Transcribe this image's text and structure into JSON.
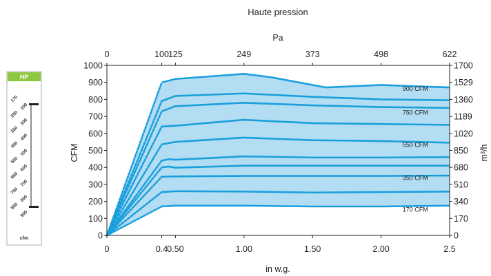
{
  "chart_data": {
    "type": "line",
    "title": "Haute pression",
    "xlabel": "in w.g.",
    "x2label": "Pa",
    "ylabel": "CFM",
    "y2label": "m³/h",
    "xlim": [
      0,
      2.5
    ],
    "ylim": [
      0,
      1000
    ],
    "x_ticks": [
      0,
      0.4,
      0.5,
      1.0,
      1.5,
      2.0,
      2.5
    ],
    "x_tick_labels": [
      "0",
      "0.4",
      "0.50",
      "1.00",
      "1.50",
      "2.00",
      "2.5"
    ],
    "x2_ticks": [
      0,
      0.4,
      0.5,
      1.0,
      1.5,
      2.0,
      2.5
    ],
    "x2_tick_labels": [
      "0",
      "100",
      "125",
      "249",
      "373",
      "498",
      "622"
    ],
    "y_ticks": [
      0,
      100,
      200,
      300,
      400,
      500,
      600,
      700,
      800,
      900,
      1000
    ],
    "y_tick_labels": [
      "0",
      "100",
      "200",
      "300",
      "400",
      "500",
      "600",
      "700",
      "800",
      "900",
      "1000"
    ],
    "y2_ticks": [
      0,
      100,
      200,
      300,
      400,
      500,
      600,
      700,
      800,
      900,
      1000
    ],
    "y2_tick_labels": [
      "0",
      "170",
      "340",
      "510",
      "680",
      "850",
      "1020",
      "1189",
      "1360",
      "1529",
      "1700"
    ],
    "grid": false,
    "series": [
      {
        "points": [
          [
            0.4,
            170
          ],
          [
            0.5,
            175
          ],
          [
            1.0,
            175
          ],
          [
            1.5,
            170
          ],
          [
            2.0,
            170
          ],
          [
            2.5,
            175
          ]
        ]
      },
      {
        "points": [
          [
            0.4,
            255
          ],
          [
            0.5,
            260
          ],
          [
            1.0,
            258
          ],
          [
            1.5,
            252
          ],
          [
            2.0,
            255
          ],
          [
            2.5,
            258
          ]
        ]
      },
      {
        "points": [
          [
            0.4,
            345
          ],
          [
            0.5,
            347
          ],
          [
            1.0,
            350
          ],
          [
            1.5,
            350
          ],
          [
            2.0,
            350
          ],
          [
            2.5,
            352
          ]
        ]
      },
      {
        "points": [
          [
            0.4,
            400
          ],
          [
            0.45,
            405
          ],
          [
            0.5,
            398
          ],
          [
            1.0,
            410
          ],
          [
            1.5,
            410
          ],
          [
            2.0,
            410
          ],
          [
            2.5,
            410
          ]
        ]
      },
      {
        "points": [
          [
            0.4,
            440
          ],
          [
            0.45,
            448
          ],
          [
            0.5,
            445
          ],
          [
            1.0,
            465
          ],
          [
            1.5,
            458
          ],
          [
            2.0,
            458
          ],
          [
            2.5,
            460
          ]
        ]
      },
      {
        "points": [
          [
            0.4,
            535
          ],
          [
            0.5,
            550
          ],
          [
            1.0,
            575
          ],
          [
            1.5,
            560
          ],
          [
            2.0,
            555
          ],
          [
            2.5,
            545
          ]
        ]
      },
      {
        "points": [
          [
            0.4,
            640
          ],
          [
            0.5,
            645
          ],
          [
            1.0,
            680
          ],
          [
            1.5,
            660
          ],
          [
            2.0,
            655
          ],
          [
            2.5,
            650
          ]
        ]
      },
      {
        "points": [
          [
            0.4,
            730
          ],
          [
            0.5,
            760
          ],
          [
            1.0,
            780
          ],
          [
            1.5,
            765
          ],
          [
            2.0,
            755
          ],
          [
            2.5,
            750
          ]
        ]
      },
      {
        "points": [
          [
            0.4,
            790
          ],
          [
            0.5,
            820
          ],
          [
            1.0,
            835
          ],
          [
            1.5,
            815
          ],
          [
            2.0,
            800
          ],
          [
            2.5,
            795
          ]
        ]
      },
      {
        "points": [
          [
            0.4,
            900
          ],
          [
            0.5,
            920
          ],
          [
            1.0,
            950
          ],
          [
            1.2,
            930
          ],
          [
            1.6,
            870
          ],
          [
            2.0,
            885
          ],
          [
            2.5,
            870
          ]
        ]
      }
    ],
    "annotations": [
      {
        "text": "900 CFM",
        "x": 2.25,
        "y": 850
      },
      {
        "text": "750 CFM",
        "x": 2.25,
        "y": 710
      },
      {
        "text": "550 CFM",
        "x": 2.25,
        "y": 520
      },
      {
        "text": "350 CFM",
        "x": 2.25,
        "y": 325
      },
      {
        "text": "170 CFM",
        "x": 2.25,
        "y": 140
      }
    ],
    "colors": {
      "line": "#1a9fdc",
      "fill": "#b3ddf2"
    }
  },
  "gauge": {
    "header": "HP",
    "footer": "cfm",
    "header_color": "#8dc63f",
    "labels": [
      "170",
      "200",
      "250",
      "300",
      "350",
      "400",
      "450",
      "500",
      "550",
      "600",
      "650",
      "700",
      "750",
      "800",
      "850",
      "900"
    ]
  }
}
